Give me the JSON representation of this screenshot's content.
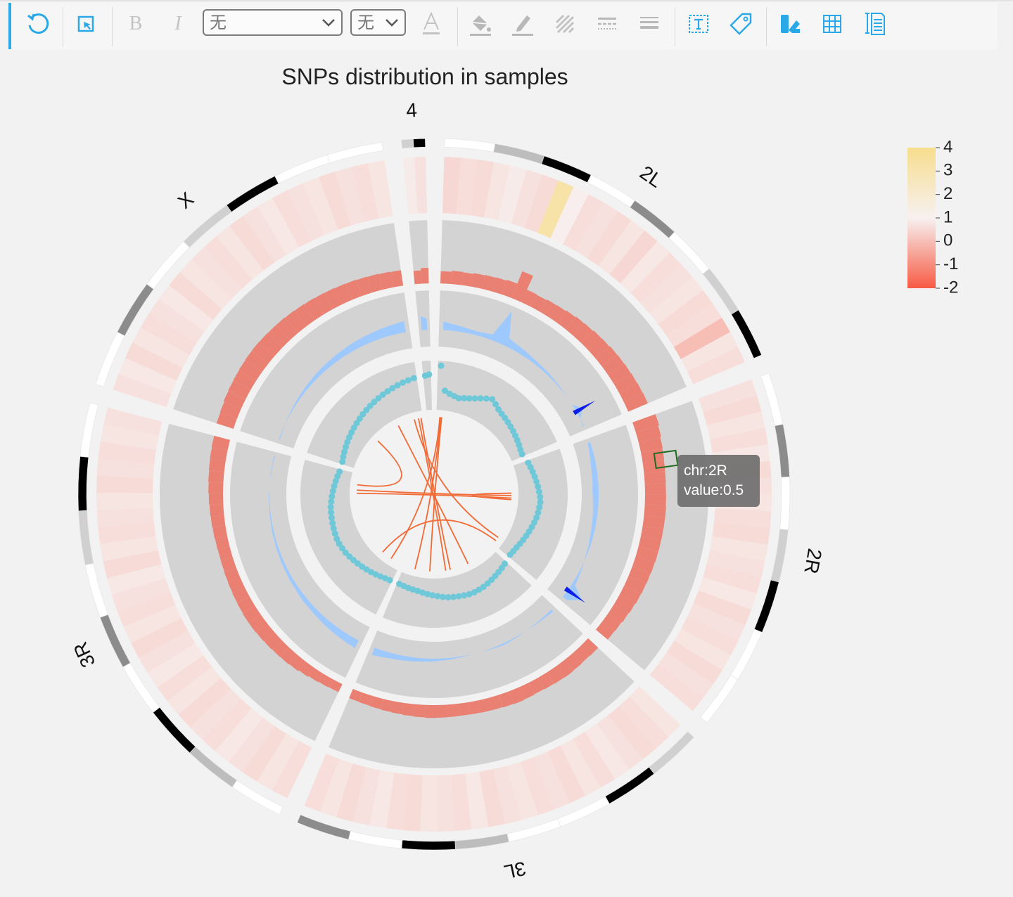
{
  "toolbar": {
    "font_family_value": "无",
    "font_size_value": "无",
    "bold_label": "B",
    "italic_label": "I"
  },
  "tooltip": {
    "chr_line": "chr:2R",
    "value_line": "value:0.5"
  },
  "colors": {
    "accent": "#2aa8e8",
    "heat_low": "#f75a44",
    "heat_mid": "#f7f1f0",
    "heat_high": "#f7dd8e",
    "bar": "#ea8072",
    "track_bg": "#d3d3d3",
    "area_light": "#9dc9ff",
    "area_dark": "#0b1fe8",
    "scatter": "#6ec8d8",
    "link": "#f26a36"
  },
  "chart_data": {
    "type": "circos",
    "title": "SNPs distribution in samples",
    "chromosomes": [
      {
        "name": "2L",
        "rel_length": 23.0
      },
      {
        "name": "2R",
        "rel_length": 21.1
      },
      {
        "name": "3L",
        "rel_length": 24.5
      },
      {
        "name": "3R",
        "rel_length": 27.9
      },
      {
        "name": "X",
        "rel_length": 22.4
      },
      {
        "name": "4",
        "rel_length": 1.35
      }
    ],
    "legend": {
      "labels": [
        "4",
        "3",
        "2",
        "1",
        "0",
        "-1",
        "-2"
      ],
      "min": -2,
      "max": 4
    },
    "heatmap_values": {
      "2L": [
        0.2,
        0.4,
        0.3,
        0.6,
        0.8,
        0.5,
        0.3,
        3.2,
        0.9,
        0.4,
        0.5,
        0.3,
        0.6,
        0.2,
        0.7,
        0.4,
        0.5,
        0.6,
        0.3,
        0.4,
        -0.5,
        0.6,
        0.4
      ],
      "2R": [
        0.5,
        0.3,
        0.6,
        0.4,
        0.7,
        0.3,
        0.5,
        0.6,
        0.4,
        0.3,
        0.6,
        0.5,
        0.4,
        0.7,
        0.3,
        0.5,
        0.4,
        0.6,
        0.3,
        0.5,
        0.4
      ],
      "3L": [
        0.6,
        0.4,
        0.3,
        0.5,
        0.7,
        0.4,
        0.6,
        0.3,
        0.5,
        0.4,
        0.6,
        0.5,
        0.3,
        0.7,
        0.4,
        0.5,
        0.6,
        0.3,
        0.4,
        0.7,
        0.5,
        0.3,
        0.6,
        0.4
      ],
      "3R": [
        0.4,
        0.6,
        0.3,
        0.5,
        0.7,
        0.4,
        0.5,
        0.3,
        0.6,
        0.4,
        0.7,
        0.5,
        0.3,
        0.6,
        0.4,
        0.5,
        0.7,
        0.3,
        0.6,
        0.4,
        0.5,
        0.6,
        0.3,
        0.5,
        0.4,
        0.6,
        0.5
      ],
      "X": [
        0.5,
        0.7,
        0.3,
        0.6,
        0.4,
        0.5,
        0.7,
        0.3,
        0.6,
        0.5,
        0.4,
        0.6,
        0.3,
        0.5,
        0.7,
        0.4,
        0.5,
        0.6,
        0.3,
        0.5,
        0.4,
        0.6
      ],
      "4": [
        0.8,
        0.5
      ]
    },
    "bar_values": {
      "2L": [
        0.55,
        0.6,
        0.58,
        0.62,
        0.64,
        0.66,
        0.7,
        1.3,
        0.62,
        0.6,
        0.64,
        0.66,
        0.7,
        0.74,
        0.76,
        0.8,
        0.82,
        0.86,
        0.88,
        0.9,
        0.92,
        0.94,
        0.96
      ],
      "2R": [
        1.1,
        1.05,
        1.0,
        0.98,
        0.96,
        0.95,
        0.94,
        0.95,
        0.96,
        0.95,
        0.94,
        0.93,
        0.92,
        0.9,
        0.88,
        0.86,
        0.84,
        0.8,
        0.76,
        0.72,
        0.7
      ],
      "3L": [
        0.62,
        0.6,
        0.62,
        0.64,
        0.62,
        0.6,
        0.58,
        0.6,
        0.62,
        0.6,
        0.58,
        0.57,
        0.56,
        0.55,
        0.56,
        0.57,
        0.58,
        0.56,
        0.54,
        0.52,
        0.5,
        0.48,
        0.46,
        0.45
      ],
      "3R": [
        0.4,
        0.42,
        0.45,
        0.5,
        0.55,
        0.58,
        0.6,
        0.62,
        0.64,
        0.66,
        0.66,
        0.64,
        0.62,
        0.6,
        0.58,
        0.56,
        0.55,
        0.56,
        0.58,
        0.6,
        0.62,
        0.64,
        0.66,
        0.68,
        0.7,
        0.72,
        0.74
      ],
      "X": [
        0.8,
        0.82,
        0.86,
        0.88,
        0.9,
        0.92,
        0.94,
        0.95,
        0.94,
        0.93,
        0.92,
        0.9,
        0.88,
        0.86,
        0.84,
        0.82,
        0.8,
        0.78,
        0.76,
        0.74,
        0.72,
        0.7
      ],
      "4": [
        0.6,
        0.7
      ]
    },
    "area_values": {
      "2L": [
        0.45,
        0.42,
        0.4,
        0.38,
        0.37,
        0.38,
        0.4,
        0.9,
        0.45,
        0.42,
        0.4,
        0.38,
        0.36,
        0.35,
        0.34,
        0.33,
        0.32,
        0.31,
        0.3,
        0.3,
        0.42,
        0.3,
        0.28
      ],
      "2R": [
        0.25,
        0.24,
        0.22,
        0.21,
        0.2,
        0.2,
        0.19,
        0.2,
        0.21,
        0.22,
        0.23,
        0.24,
        0.25,
        0.27,
        0.28,
        0.3,
        0.32,
        0.34,
        0.36,
        0.6,
        0.4
      ],
      "3L": [
        0.35,
        0.33,
        0.32,
        0.31,
        0.3,
        0.31,
        0.32,
        0.33,
        0.32,
        0.31,
        0.3,
        0.3,
        0.31,
        0.32,
        0.33,
        0.34,
        0.35,
        0.36,
        0.37,
        0.38,
        0.39,
        0.4,
        0.42,
        0.44
      ],
      "3R": [
        0.45,
        0.44,
        0.43,
        0.42,
        0.41,
        0.4,
        0.39,
        0.38,
        0.38,
        0.37,
        0.36,
        0.36,
        0.35,
        0.35,
        0.34,
        0.34,
        0.33,
        0.33,
        0.32,
        0.32,
        0.31,
        0.31,
        0.3,
        0.3,
        0.29,
        0.29,
        0.28
      ],
      "X": [
        0.28,
        0.29,
        0.3,
        0.31,
        0.32,
        0.33,
        0.34,
        0.35,
        0.36,
        0.37,
        0.38,
        0.39,
        0.4,
        0.41,
        0.42,
        0.43,
        0.44,
        0.45,
        0.46,
        0.47,
        0.48,
        0.5
      ],
      "4": [
        0.55,
        0.5
      ]
    },
    "highlight_areas": [
      {
        "chr": "2L",
        "index": 20
      },
      {
        "chr": "2R",
        "index": 19
      }
    ],
    "scatter_values": {
      "2L": [
        0.9,
        0.4,
        0.35,
        0.32,
        0.3,
        0.33,
        0.36,
        0.4,
        0.45,
        0.5,
        0.55,
        0.5,
        0.45,
        0.42,
        0.4,
        0.38,
        0.36,
        0.34,
        0.32,
        0.3,
        0.28,
        0.26,
        0.25
      ],
      "2R": [
        0.3,
        0.32,
        0.34,
        0.36,
        0.38,
        0.4,
        0.42,
        0.44,
        0.45,
        0.44,
        0.43,
        0.42,
        0.4,
        0.38,
        0.36,
        0.34,
        0.32,
        0.3,
        0.28,
        0.27,
        0.26
      ],
      "3L": [
        0.3,
        0.32,
        0.34,
        0.36,
        0.38,
        0.4,
        0.42,
        0.43,
        0.44,
        0.44,
        0.43,
        0.42,
        0.41,
        0.4,
        0.38,
        0.36,
        0.34,
        0.32,
        0.3,
        0.28,
        0.27,
        0.26,
        0.25,
        0.24
      ],
      "3R": [
        0.25,
        0.26,
        0.28,
        0.3,
        0.32,
        0.34,
        0.36,
        0.38,
        0.4,
        0.42,
        0.44,
        0.45,
        0.46,
        0.46,
        0.45,
        0.44,
        0.43,
        0.42,
        0.41,
        0.4,
        0.38,
        0.36,
        0.34,
        0.32,
        0.3,
        0.28,
        0.26
      ],
      "X": [
        0.26,
        0.28,
        0.3,
        0.32,
        0.34,
        0.36,
        0.38,
        0.4,
        0.42,
        0.44,
        0.46,
        0.48,
        0.5,
        0.52,
        0.54,
        0.56,
        0.58,
        0.6,
        0.62,
        0.64,
        0.66,
        0.68
      ],
      "4": [
        0.7,
        0.72
      ]
    },
    "links": [
      {
        "chr1": "2R",
        "pos1": 0.35,
        "chr2": "3R",
        "pos2": 0.85
      },
      {
        "chr1": "2R",
        "pos1": 0.38,
        "chr2": "3R",
        "pos2": 0.82
      },
      {
        "chr1": "2R",
        "pos1": 0.4,
        "chr2": "2R",
        "pos2": 0.32
      },
      {
        "chr1": "2L",
        "pos1": 0.05,
        "chr2": "3L",
        "pos2": 0.88
      },
      {
        "chr1": "2L",
        "pos1": 0.06,
        "chr2": "3L",
        "pos2": 0.72
      },
      {
        "chr1": "2L",
        "pos1": 0.04,
        "chr2": "3R",
        "pos2": 0.1
      },
      {
        "chr1": "X",
        "pos1": 0.95,
        "chr2": "3L",
        "pos2": 0.55
      },
      {
        "chr1": "X",
        "pos1": 0.98,
        "chr2": "3L",
        "pos2": 0.5
      },
      {
        "chr1": "X",
        "pos1": 0.9,
        "chr2": "2R",
        "pos2": 0.9
      },
      {
        "chr1": "X",
        "pos1": 0.7,
        "chr2": "3L",
        "pos2": 0.3
      },
      {
        "chr1": "3R",
        "pos1": 0.9,
        "chr2": "X",
        "pos2": 0.4
      },
      {
        "chr1": "2R",
        "pos1": 0.95,
        "chr2": "3R",
        "pos2": 0.2
      }
    ]
  }
}
